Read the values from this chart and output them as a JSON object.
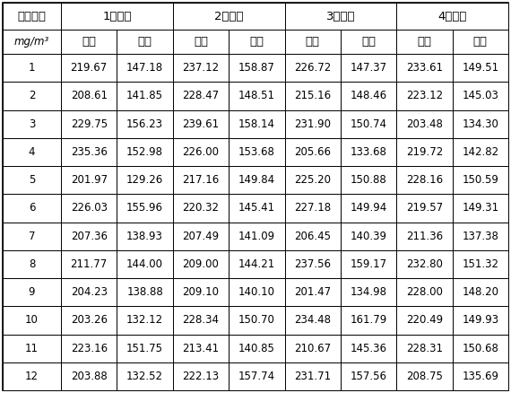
{
  "boiler_labels": [
    "1号锅炉",
    "2号锅炉",
    "3号锅炉",
    "4号锅炉"
  ],
  "col0_header_line1": "氮氧化物",
  "col0_header_line2": "mg/m³",
  "sub_labels": [
    "空白",
    "试样",
    "空白",
    "试样",
    "空白",
    "试样",
    "空白",
    "试样"
  ],
  "data": [
    [
      1,
      219.67,
      147.18,
      237.12,
      158.87,
      226.72,
      147.37,
      233.61,
      149.51
    ],
    [
      2,
      208.61,
      141.85,
      228.47,
      148.51,
      215.16,
      148.46,
      223.12,
      145.03
    ],
    [
      3,
      229.75,
      156.23,
      239.61,
      158.14,
      231.9,
      150.74,
      203.48,
      134.3
    ],
    [
      4,
      235.36,
      152.98,
      226.0,
      153.68,
      205.66,
      133.68,
      219.72,
      142.82
    ],
    [
      5,
      201.97,
      129.26,
      217.16,
      149.84,
      225.2,
      150.88,
      228.16,
      150.59
    ],
    [
      6,
      226.03,
      155.96,
      220.32,
      145.41,
      227.18,
      149.94,
      219.57,
      149.31
    ],
    [
      7,
      207.36,
      138.93,
      207.49,
      141.09,
      206.45,
      140.39,
      211.36,
      137.38
    ],
    [
      8,
      211.77,
      144.0,
      209.0,
      144.21,
      237.56,
      159.17,
      232.8,
      151.32
    ],
    [
      9,
      204.23,
      138.88,
      209.1,
      140.1,
      201.47,
      134.98,
      228.0,
      148.2
    ],
    [
      10,
      203.26,
      132.12,
      228.34,
      150.7,
      234.48,
      161.79,
      220.49,
      149.93
    ],
    [
      11,
      223.16,
      151.75,
      213.41,
      140.85,
      210.67,
      145.36,
      228.31,
      150.68
    ],
    [
      12,
      203.88,
      132.52,
      222.13,
      157.74,
      231.71,
      157.56,
      208.75,
      135.69
    ]
  ],
  "bg_color": "#ffffff",
  "border_color": "#000000",
  "text_color": "#000000",
  "data_fontsize": 8.5,
  "header_fontsize": 9.5,
  "sub_header_fontsize": 9.5
}
